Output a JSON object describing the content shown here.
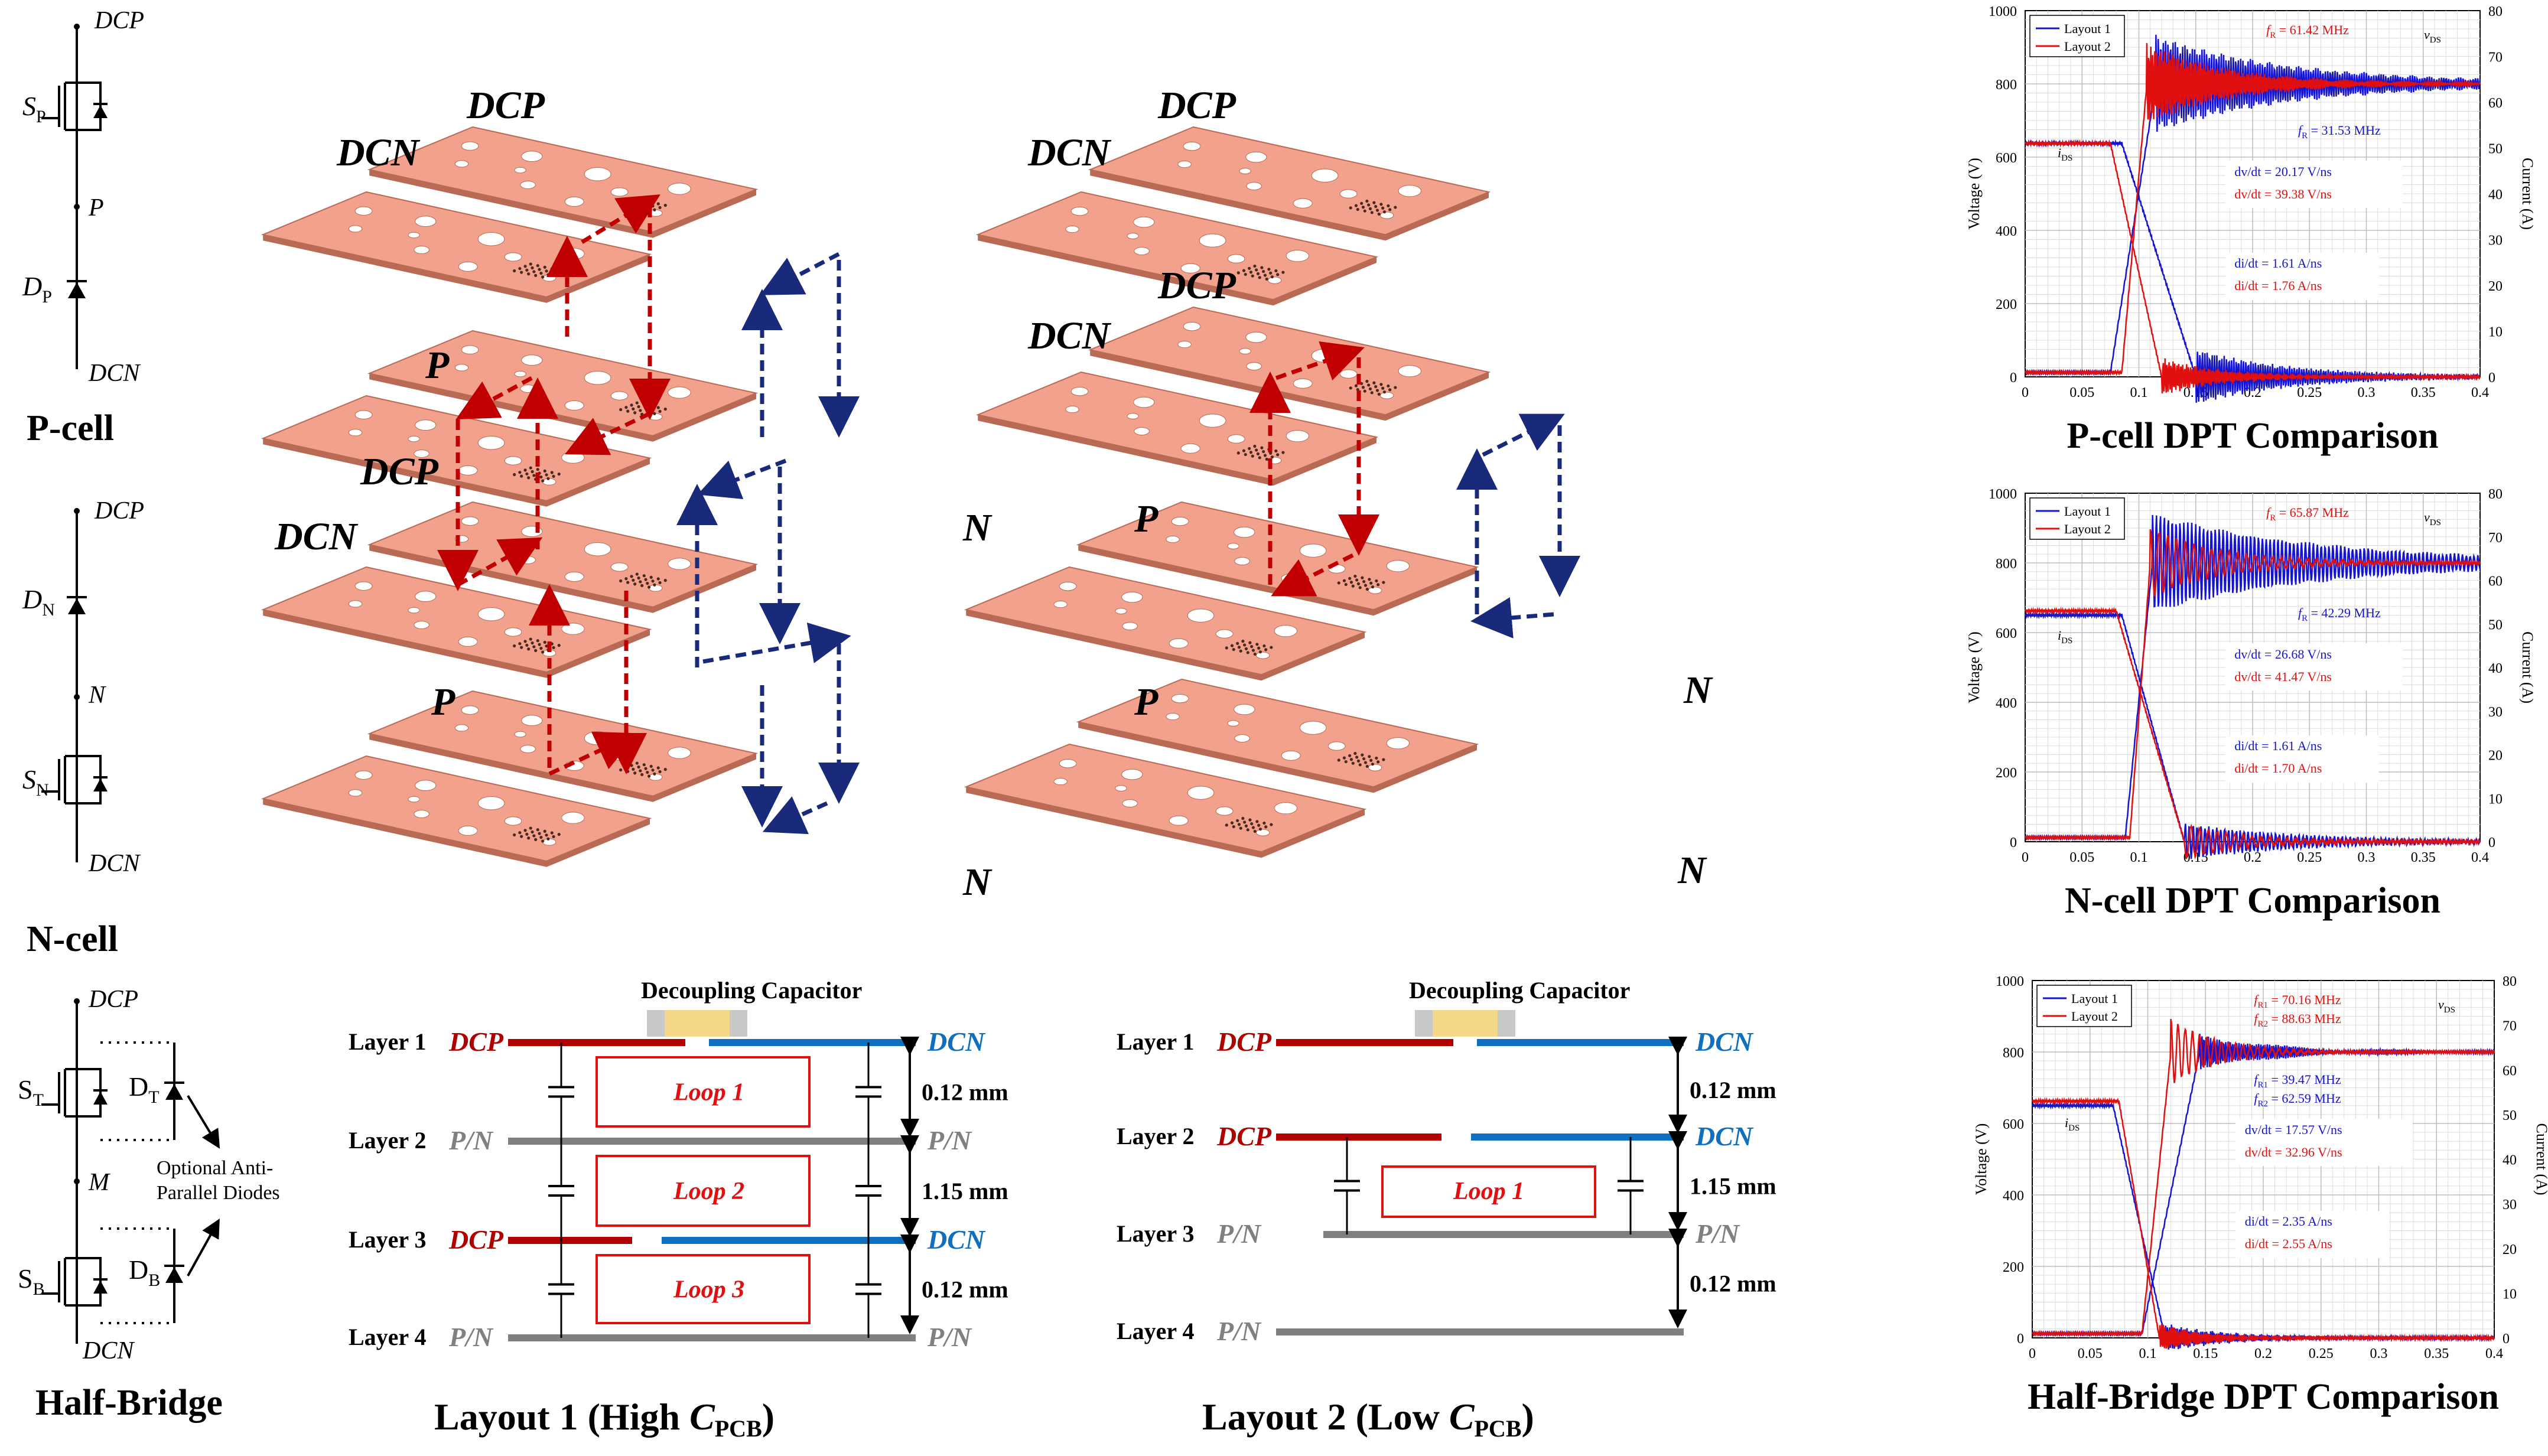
{
  "colors": {
    "pcb": "#f2a28c",
    "pcb_edge": "#b86a55",
    "red": "#c00000",
    "blue": "#1a2a7a",
    "rail_red": "#b00000",
    "rail_blue": "#1070c0",
    "rail_gray": "#808080",
    "cap": "#f5d98a",
    "cap_pad": "#c8c8c8",
    "trace_blue": "#1515d0",
    "trace_red": "#e01010"
  },
  "cells": {
    "pcell": {
      "title": "P-cell",
      "top": "DCP",
      "mid": "P",
      "bottom": "DCN",
      "sw": "S",
      "sw_sub": "P",
      "d": "D",
      "d_sub": "P"
    },
    "ncell": {
      "title": "N-cell",
      "top": "DCP",
      "mid": "N",
      "bottom": "DCN",
      "d": "D",
      "d_sub": "N",
      "sw": "S",
      "sw_sub": "N"
    },
    "hb": {
      "title": "Half-Bridge",
      "top": "DCP",
      "mid": "M",
      "bottom": "DCN",
      "st": "S",
      "st_sub": "T",
      "sb": "S",
      "sb_sub": "B",
      "dt": "D",
      "dt_sub": "T",
      "db": "D",
      "db_sub": "B",
      "note1": "Optional Anti-",
      "note2": "Parallel Diodes"
    }
  },
  "layout1_iso": {
    "dcp1": "DCP",
    "dcn1": "DCN",
    "p1": "P",
    "dcp2": "DCP",
    "dcn2": "DCN",
    "n1": "N",
    "p2": "P",
    "n2": "N"
  },
  "layout2_iso": {
    "dcp1": "DCP",
    "dcn1": "DCN",
    "dcp2": "DCP",
    "dcn2": "DCN",
    "p1": "P",
    "n1": "N",
    "p2": "P",
    "n2": "N"
  },
  "cross1": {
    "cap_title": "Decoupling Capacitor",
    "layers": [
      "Layer 1",
      "Layer 2",
      "Layer 3",
      "Layer 4"
    ],
    "left": [
      "DCP",
      "P/N",
      "DCP",
      "P/N"
    ],
    "right": [
      "DCN",
      "P/N",
      "DCN",
      "P/N"
    ],
    "gaps": [
      "0.12 mm",
      "1.15 mm",
      "0.12 mm"
    ],
    "loops": [
      "Loop 1",
      "Loop 2",
      "Loop 3"
    ],
    "caption": "Layout 1 (High ",
    "caption_c": "C",
    "caption_sub": "PCB",
    "caption_end": ")"
  },
  "cross2": {
    "cap_title": "Decoupling Capacitor",
    "layers": [
      "Layer 1",
      "Layer 2",
      "Layer 3",
      "Layer 4"
    ],
    "left": [
      "DCP",
      "DCP",
      "P/N",
      "P/N"
    ],
    "right": [
      "DCN",
      "DCN",
      "P/N",
      ""
    ],
    "gaps": [
      "0.12 mm",
      "1.15 mm",
      "0.12 mm"
    ],
    "loops": [
      "Loop 1"
    ],
    "caption": "Layout 2 (Low ",
    "caption_c": "C",
    "caption_sub": "PCB",
    "caption_end": ")"
  },
  "chart_data": [
    {
      "type": "line",
      "title": "P-cell DPT Comparison",
      "xlabel": "",
      "ylabel": "Voltage (V)",
      "y2label": "Current (A)",
      "xlim": [
        0,
        0.4
      ],
      "ylim": [
        0,
        1000
      ],
      "y2lim": [
        0,
        80
      ],
      "xticks": [
        "0",
        "0.05",
        "0.1",
        "0.15",
        "0.2",
        "0.25",
        "0.3",
        "0.35",
        "0.4"
      ],
      "yticks": [
        "0",
        "200",
        "400",
        "600",
        "800",
        "1000"
      ],
      "y2ticks": [
        "0",
        "10",
        "20",
        "30",
        "40",
        "50",
        "60",
        "70",
        "80"
      ],
      "legend": [
        "Layout 1",
        "Layout 2"
      ],
      "annotations": {
        "fr_red_pre": "f",
        "fr_red_sub": "R",
        "fr_red_val": " = 61.42 MHz",
        "fr_blue_pre": "f",
        "fr_blue_sub": "R",
        "fr_blue_val": " = 31.53 MHz",
        "dv_blue": "dv/dt = 20.17 V/ns",
        "dv_red": "dv/dt = 39.38 V/ns",
        "di_blue": "di/dt = 1.61 A/ns",
        "di_red": "di/dt = 1.76 A/ns",
        "ids": "i",
        "ids_sub": "DS",
        "vds": "v",
        "vds_sub": "DS"
      },
      "series": [
        {
          "name": "Layout 1",
          "color": "#1515d0",
          "v": {
            "t0": 0.075,
            "t1": 0.115,
            "ov": 0.14,
            "amp": 130,
            "f": 31.53,
            "tau": 0.12
          },
          "i": {
            "t0": 0.085,
            "t1": 0.15,
            "start": 51,
            "amp": 6,
            "f": 31.53,
            "tau": 0.08
          }
        },
        {
          "name": "Layout 2",
          "color": "#e01010",
          "v": {
            "t0": 0.085,
            "t1": 0.107,
            "ov": 0.128,
            "amp": 110,
            "f": 61.42,
            "tau": 0.07
          },
          "i": {
            "t0": 0.075,
            "t1": 0.12,
            "start": 51,
            "amp": 4,
            "f": 61.42,
            "tau": 0.05
          }
        }
      ]
    },
    {
      "type": "line",
      "title": "N-cell DPT Comparison",
      "xlabel": "",
      "ylabel": "Voltage (V)",
      "y2label": "Current (A)",
      "xlim": [
        0,
        0.4
      ],
      "ylim": [
        0,
        1000
      ],
      "y2lim": [
        0,
        80
      ],
      "xticks": [
        "0",
        "0.05",
        "0.1",
        "0.15",
        "0.2",
        "0.25",
        "0.3",
        "0.35",
        "0.4"
      ],
      "yticks": [
        "0",
        "200",
        "400",
        "600",
        "800",
        "1000"
      ],
      "y2ticks": [
        "0",
        "10",
        "20",
        "30",
        "40",
        "50",
        "60",
        "70",
        "80"
      ],
      "legend": [
        "Layout 1",
        "Layout 2"
      ],
      "annotations": {
        "fr_red_pre": "f",
        "fr_red_sub": "R",
        "fr_red_val": " = 65.87 MHz",
        "fr_blue_pre": "f",
        "fr_blue_sub": "R",
        "fr_blue_val": " = 42.29 MHz",
        "dv_blue": "dv/dt = 26.68 V/ns",
        "dv_red": "dv/dt = 41.47 V/ns",
        "di_blue": "di/dt = 1.61 A/ns",
        "di_red": "di/dt = 1.70 A/ns",
        "ids": "i",
        "ids_sub": "DS",
        "vds": "v",
        "vds_sub": "DS"
      },
      "series": [
        {
          "name": "Layout 1",
          "color": "#1515d0",
          "v": {
            "t0": 0.088,
            "t1": 0.112,
            "ov": 0.13,
            "amp": 140,
            "f": 42.29,
            "tau": 0.15
          },
          "i": {
            "t0": 0.085,
            "t1": 0.14,
            "start": 52,
            "amp": 4,
            "f": 42.29,
            "tau": 0.1
          }
        },
        {
          "name": "Layout 2",
          "color": "#e01010",
          "v": {
            "t0": 0.092,
            "t1": 0.11,
            "ov": 0.125,
            "amp": 100,
            "f": 65.87,
            "tau": 0.06
          },
          "i": {
            "t0": 0.08,
            "t1": 0.14,
            "start": 53,
            "amp": 4,
            "f": 65.87,
            "tau": 0.05
          }
        }
      ]
    },
    {
      "type": "line",
      "title": "Half-Bridge DPT Comparison",
      "xlabel": "",
      "ylabel": "Voltage (V)",
      "y2label": "Current (A)",
      "xlim": [
        0,
        0.4
      ],
      "ylim": [
        0,
        1000
      ],
      "y2lim": [
        0,
        80
      ],
      "xticks": [
        "0",
        "0.05",
        "0.1",
        "0.15",
        "0.2",
        "0.25",
        "0.3",
        "0.35",
        "0.4"
      ],
      "yticks": [
        "0",
        "200",
        "400",
        "600",
        "800",
        "1000"
      ],
      "y2ticks": [
        "0",
        "10",
        "20",
        "30",
        "40",
        "50",
        "60",
        "70",
        "80"
      ],
      "legend": [
        "Layout 1",
        "Layout 2"
      ],
      "annotations": {
        "fr1_red_pre": "f",
        "fr1_red_sub": "R1",
        "fr1_red_val": " = 70.16 MHz",
        "fr2_red_pre": "f",
        "fr2_red_sub": "R2",
        "fr2_red_val": " = 88.63 MHz",
        "fr1_blue_pre": "f",
        "fr1_blue_sub": "R1",
        "fr1_blue_val": " = 39.47 MHz",
        "fr2_blue_pre": "f",
        "fr2_blue_sub": "R2",
        "fr2_blue_val": " = 62.59 MHz",
        "dv_blue": "dv/dt = 17.57 V/ns",
        "dv_red": "dv/dt = 32.96 V/ns",
        "di_blue": "di/dt = 2.35 A/ns",
        "di_red": "di/dt = 2.55 A/ns",
        "ids": "i",
        "ids_sub": "DS",
        "vds": "v",
        "vds_sub": "DS"
      },
      "series": [
        {
          "name": "Layout 1",
          "color": "#1515d0",
          "v": {
            "t0": 0.095,
            "t1": 0.145,
            "ov": 0.16,
            "amp": 50,
            "f": 39.47,
            "tau": 0.06
          },
          "i": {
            "t0": 0.07,
            "t1": 0.115,
            "start": 52,
            "amp": 3,
            "f": 62.59,
            "tau": 0.05
          }
        },
        {
          "name": "Layout 2",
          "color": "#e01010",
          "v": {
            "t0": 0.095,
            "t1": 0.12,
            "ov": 0.125,
            "amp": 90,
            "f": 70.16,
            "tau": 0.04
          },
          "i": {
            "t0": 0.075,
            "t1": 0.11,
            "start": 53,
            "amp": 3,
            "f": 88.63,
            "tau": 0.04
          }
        }
      ]
    }
  ]
}
